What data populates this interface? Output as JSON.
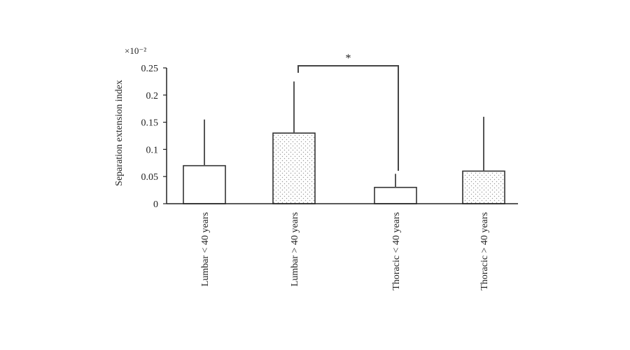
{
  "chart_data": {
    "type": "bar",
    "ylabel": "Separation extension index",
    "scale_factor": "×10⁻²",
    "ylim": [
      0,
      0.25
    ],
    "yticks": [
      "0",
      "0.05",
      "0.1",
      "0.15",
      "0.2",
      "0.25"
    ],
    "categories": [
      "Lumbar < 40 years",
      "Lumbar > 40 years",
      "Thoracic < 40 years",
      "Thoracic > 40 years"
    ],
    "values": [
      0.07,
      0.13,
      0.03,
      0.06
    ],
    "error_upper": [
      0.155,
      0.225,
      0.055,
      0.16
    ],
    "fills": [
      "plain",
      "dotted",
      "plain",
      "dotted"
    ],
    "significance": {
      "from": 1,
      "to": 2,
      "label": "*"
    },
    "grid": false
  }
}
